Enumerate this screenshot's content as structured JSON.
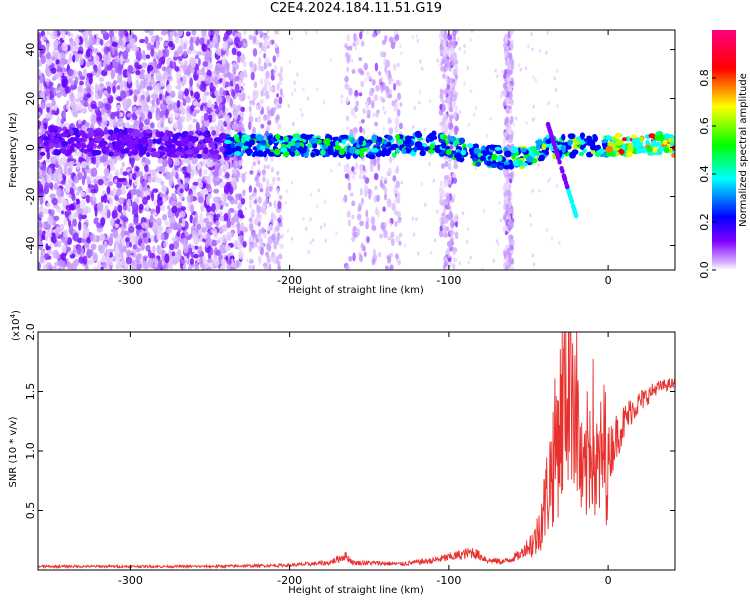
{
  "title": "C2E4.2024.184.11.51.G19",
  "chart_data": [
    {
      "type": "heatmap",
      "title": "C2E4.2024.184.11.51.G19",
      "xlabel": "Height of straight line (km)",
      "ylabel": "Frequency (Hz)",
      "xlim": [
        -358,
        42
      ],
      "ylim": [
        -50,
        48
      ],
      "x_ticks": [
        -300,
        -200,
        -100,
        0
      ],
      "y_ticks": [
        -40,
        -20,
        0,
        20,
        40
      ],
      "colorbar": {
        "label": "Normalized spectral amplitude",
        "range": [
          0.0,
          1.0
        ],
        "ticks": [
          "0.0",
          "0.2",
          "0.4",
          "0.6",
          "0.8"
        ],
        "colormap": [
          "#ffffff",
          "#8000ff",
          "#0000ff",
          "#00ffff",
          "#00ff00",
          "#ffff00",
          "#ff0000",
          "#ff0080"
        ]
      },
      "dominant_trace": [
        {
          "x": -355,
          "y": 3
        },
        {
          "x": -300,
          "y": 2
        },
        {
          "x": -240,
          "y": 1
        },
        {
          "x": -200,
          "y": 1
        },
        {
          "x": -150,
          "y": 0
        },
        {
          "x": -110,
          "y": 2
        },
        {
          "x": -80,
          "y": -3
        },
        {
          "x": -60,
          "y": -5
        },
        {
          "x": -40,
          "y": 0
        },
        {
          "x": -20,
          "y": 1
        },
        {
          "x": 0,
          "y": 1
        },
        {
          "x": 20,
          "y": 1
        },
        {
          "x": 40,
          "y": 2
        }
      ]
    },
    {
      "type": "line",
      "xlabel": "Height of straight line (km)",
      "ylabel": "SNR (10 * v/v)",
      "y_multiplier": "(x10",
      "y_multiplier_exp": "4",
      "xlim": [
        -358,
        42
      ],
      "ylim": [
        0,
        2.0
      ],
      "x_ticks": [
        -300,
        -200,
        -100,
        0
      ],
      "y_ticks": [
        "0.5",
        "1.0",
        "1.5",
        "2.0"
      ],
      "color": "#e8312e",
      "series": [
        {
          "x": [
            -358,
            -300,
            -250,
            -200,
            -175,
            -165,
            -160,
            -150,
            -130,
            -110,
            -95,
            -85,
            -75,
            -65,
            -55,
            -45,
            -40,
            -35,
            -30,
            -27,
            -25,
            -23,
            -20,
            -17,
            -15,
            -12,
            -10,
            -8,
            -5,
            -2,
            0,
            5,
            10,
            15,
            20,
            25,
            30,
            35,
            40,
            42
          ],
          "y": [
            0.03,
            0.03,
            0.03,
            0.04,
            0.06,
            0.12,
            0.06,
            0.06,
            0.05,
            0.08,
            0.12,
            0.15,
            0.08,
            0.07,
            0.13,
            0.3,
            0.6,
            1.0,
            1.4,
            1.7,
            1.9,
            2.0,
            1.6,
            0.9,
            0.8,
            1.2,
            1.4,
            0.9,
            1.0,
            1.15,
            1.05,
            1.2,
            1.3,
            1.4,
            1.45,
            1.5,
            1.55,
            1.57,
            1.58,
            1.58
          ]
        }
      ]
    }
  ]
}
